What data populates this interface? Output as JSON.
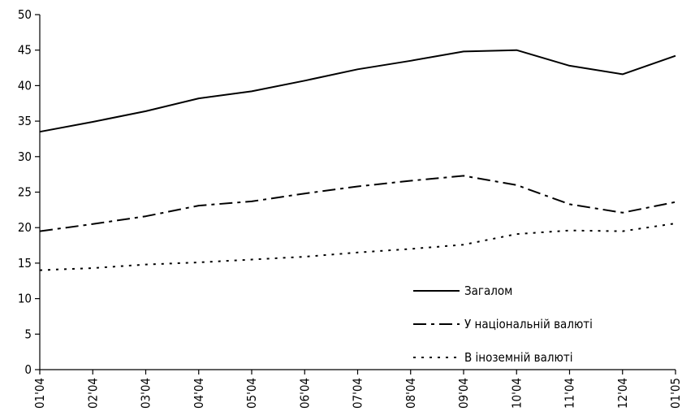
{
  "chart_data": {
    "type": "line",
    "categories": [
      "01'04",
      "02'04",
      "03'04",
      "04'04",
      "05'04",
      "06'04",
      "07'04",
      "08'04",
      "09'04",
      "10'04",
      "11'04",
      "12'04",
      "01'05"
    ],
    "series": [
      {
        "name": "Загалом",
        "style": "solid",
        "values": [
          33.5,
          34.9,
          36.4,
          38.2,
          39.2,
          40.7,
          42.3,
          43.5,
          44.8,
          45.0,
          42.8,
          41.6,
          44.2
        ]
      },
      {
        "name": "У національній валюті",
        "style": "dash-dot",
        "values": [
          19.5,
          20.5,
          21.6,
          23.1,
          23.7,
          24.8,
          25.8,
          26.6,
          27.3,
          26.0,
          23.3,
          22.1,
          23.6
        ]
      },
      {
        "name": "В іноземній валюті",
        "style": "dotted",
        "values": [
          14.0,
          14.3,
          14.8,
          15.1,
          15.5,
          15.9,
          16.5,
          17.0,
          17.6,
          19.1,
          19.6,
          19.5,
          20.6
        ]
      }
    ],
    "ylim": [
      0,
      50
    ],
    "yticks": [
      0,
      5,
      10,
      15,
      20,
      25,
      30,
      35,
      40,
      45,
      50
    ],
    "grid": false,
    "legend_position": "right-center",
    "line_color": "#000000"
  }
}
